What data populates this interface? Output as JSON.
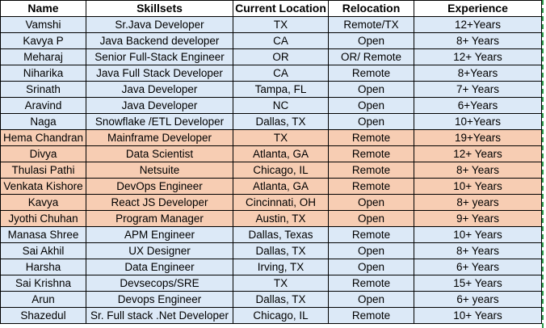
{
  "headers": [
    "Name",
    "Skillsets",
    "Current Location",
    "Relocation",
    "Experience"
  ],
  "rows": [
    {
      "name": "Vamshi",
      "skill": "Sr.Java Developer",
      "location": "TX",
      "relocation": "Remote/TX",
      "experience": "12+Years",
      "color": "blue"
    },
    {
      "name": "Kavya P",
      "skill": "Java Backend developer",
      "location": "CA",
      "relocation": "Open",
      "experience": "8+ Years",
      "color": "blue"
    },
    {
      "name": "Meharaj",
      "skill": "Senior Full-Stack Engineer",
      "location": "OR",
      "relocation": "OR/ Remote",
      "experience": "12+ Years",
      "color": "blue"
    },
    {
      "name": "Niharika",
      "skill": "Java Full Stack Developer",
      "location": "CA",
      "relocation": "Remote",
      "experience": "8+Years",
      "color": "blue"
    },
    {
      "name": "Srinath",
      "skill": "Java Developer",
      "location": "Tampa, FL",
      "relocation": "Open",
      "experience": "7+ Years",
      "color": "blue"
    },
    {
      "name": "Aravind",
      "skill": "Java Developer",
      "location": "NC",
      "relocation": "Open",
      "experience": "6+Years",
      "color": "blue"
    },
    {
      "name": "Naga",
      "skill": "Snowflake /ETL Developer",
      "location": "Dallas, TX",
      "relocation": "Open",
      "experience": "10+Years",
      "color": "blue"
    },
    {
      "name": "Hema Chandran",
      "skill": "Mainframe Developer",
      "location": "TX",
      "relocation": "Remote",
      "experience": "19+Years",
      "color": "orange"
    },
    {
      "name": "Divya",
      "skill": "Data Scientist",
      "location": "Atlanta, GA",
      "relocation": "Remote",
      "experience": "12+ Years",
      "color": "orange"
    },
    {
      "name": "Thulasi Pathi",
      "skill": "Netsuite",
      "location": "Chicago, IL",
      "relocation": "Remote",
      "experience": "8+ Years",
      "color": "orange"
    },
    {
      "name": "Venkata Kishore",
      "skill": "DevOps Engineer",
      "location": "Atlanta, GA",
      "relocation": "Remote",
      "experience": "10+ Years",
      "color": "orange"
    },
    {
      "name": "Kavya",
      "skill": "React JS Developer",
      "location": "Cincinnati, OH",
      "relocation": "Open",
      "experience": "8+ years",
      "color": "orange"
    },
    {
      "name": "Jyothi Chuhan",
      "skill": "Program Manager",
      "location": "Austin, TX",
      "relocation": "Open",
      "experience": "9+ Years",
      "color": "orange"
    },
    {
      "name": "Manasa Shree",
      "skill": "APM Engineer",
      "location": "Dallas, Texas",
      "relocation": "Remote",
      "experience": "10+ Years",
      "color": "blue"
    },
    {
      "name": "Sai Akhil",
      "skill": "UX Designer",
      "location": "Dallas, TX",
      "relocation": "Open",
      "experience": "8+ Years",
      "color": "blue"
    },
    {
      "name": "Harsha",
      "skill": "Data Engineer",
      "location": "Irving, TX",
      "relocation": "Open",
      "experience": "6+ Years",
      "color": "blue"
    },
    {
      "name": "Sai Krishna",
      "skill": "Devsecops/SRE",
      "location": "TX",
      "relocation": "Remote",
      "experience": "15+ Years",
      "color": "blue"
    },
    {
      "name": "Arun",
      "skill": "Devops Engineer",
      "location": "Dallas, TX",
      "relocation": "Open",
      "experience": "6+ years",
      "color": "blue"
    },
    {
      "name": "Shazedul",
      "skill": "Sr. Full stack .Net Developer",
      "location": "Chicago, IL",
      "relocation": "Remote",
      "experience": "10+ Years",
      "color": "blue"
    }
  ]
}
